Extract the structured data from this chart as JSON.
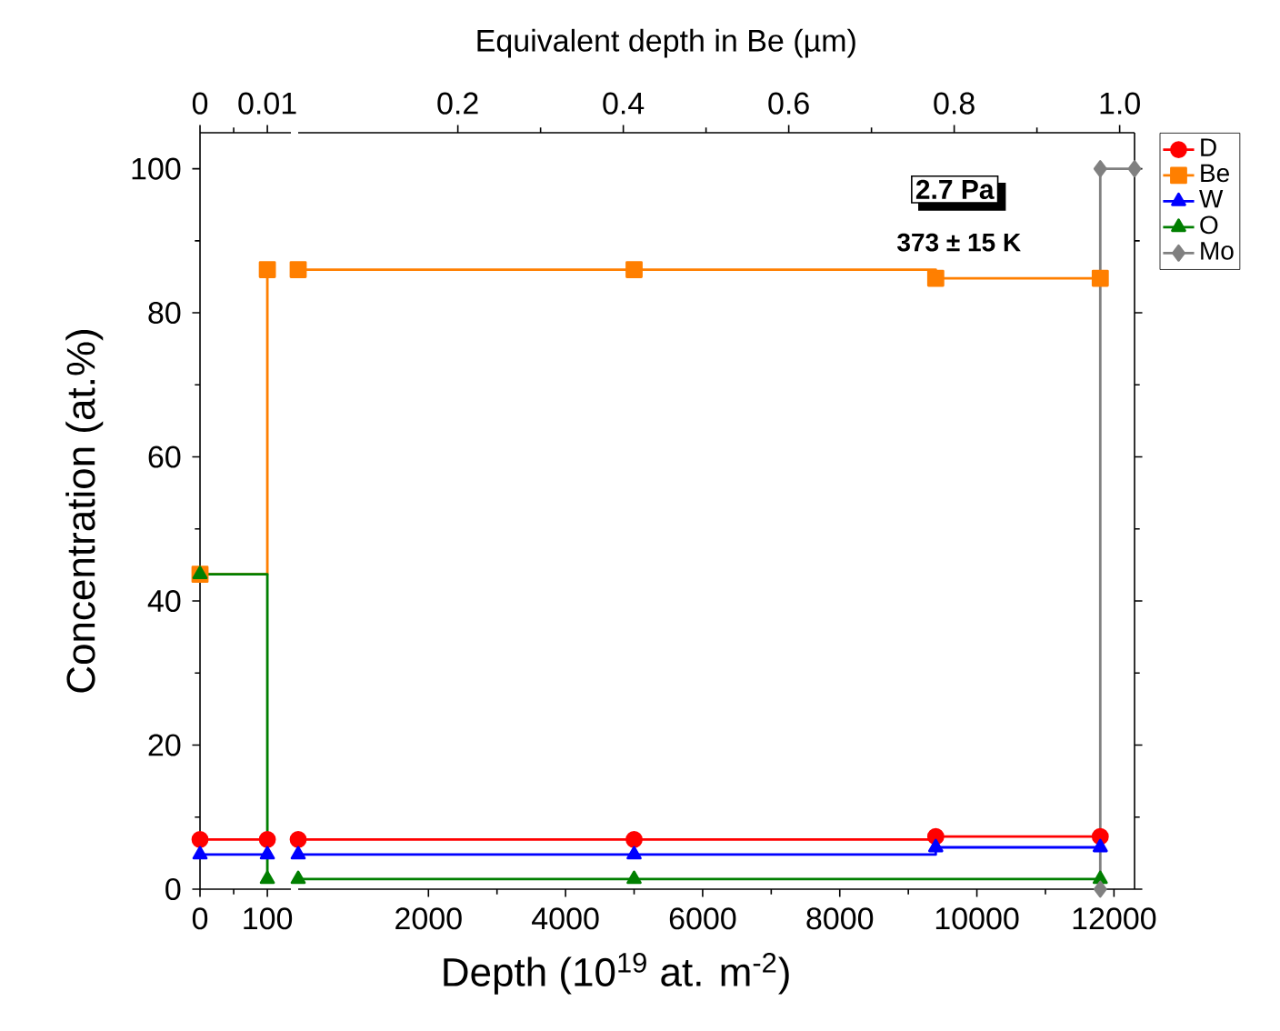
{
  "chart_data": [
    {
      "type": "step",
      "xlim": [
        0,
        135
      ],
      "xticks": [
        0,
        100
      ],
      "x2lim": [
        0,
        0.0135
      ],
      "x2ticks": [
        0,
        0.01
      ],
      "ylim": [
        0,
        105
      ],
      "yticks": [
        0,
        20,
        40,
        60,
        80,
        100
      ],
      "ylabel": "Concentration (at.%)",
      "series": [
        {
          "color": "#ff0000",
          "marker": "circle",
          "x": [
            0,
            100
          ],
          "values": [
            6.9,
            6.9
          ]
        },
        {
          "color": "#ff7f00",
          "marker": "square",
          "x": [
            0,
            100
          ],
          "values": [
            43.7,
            86
          ]
        },
        {
          "color": "#0000ff",
          "marker": "triangle",
          "x": [
            0,
            100
          ],
          "values": [
            4.8,
            4.8
          ]
        },
        {
          "color": "#007f00",
          "marker": "triangle",
          "x": [
            0,
            100
          ],
          "values": [
            43.7,
            1.4
          ]
        }
      ]
    },
    {
      "type": "step",
      "xlim": [
        100,
        12300
      ],
      "xticks": [
        2000,
        4000,
        6000,
        8000,
        10000,
        12000
      ],
      "x2lim": [
        0.007,
        1.018
      ],
      "x2ticks": [
        0.2,
        0.4,
        0.6,
        0.8,
        {
          "value": 1.0,
          "label": "1.0"
        }
      ],
      "ylim": [
        0,
        105
      ],
      "yticks": [
        0,
        20,
        40,
        60,
        80,
        100
      ],
      "tick_labels": "x",
      "xlabel": "Depth (10$^{19}$ at. m$^{-2}$)",
      "x2label": "Equivalent depth in Be (µm)",
      "legend": "top right",
      "annotations": [
        "2.7 Pa",
        "373 ± 15 K"
      ],
      "series": [
        {
          "name": "D",
          "color": "#ff0000",
          "marker": "circle",
          "x": [
            100,
            5000,
            9400,
            11800
          ],
          "values": [
            6.9,
            6.9,
            7.3,
            7.3
          ]
        },
        {
          "name": "Be",
          "color": "#ff7f00",
          "marker": "square",
          "x": [
            100,
            5000,
            9400,
            11800
          ],
          "values": [
            86,
            86,
            84.8,
            84.8
          ]
        },
        {
          "name": "W",
          "color": "#0000ff",
          "marker": "triangle",
          "x": [
            100,
            5000,
            9400,
            11800
          ],
          "values": [
            4.8,
            4.8,
            5.8,
            5.8
          ]
        },
        {
          "name": "O",
          "color": "#007f00",
          "marker": "triangle",
          "x": [
            100,
            5000,
            11800
          ],
          "values": [
            1.4,
            1.4,
            1.4
          ]
        },
        {
          "name": "Mo",
          "type": "line",
          "color": "#808080",
          "marker": "diamond",
          "x": [
            11800,
            11800,
            12300
          ],
          "values": [
            0,
            100,
            100
          ]
        }
      ]
    }
  ]
}
